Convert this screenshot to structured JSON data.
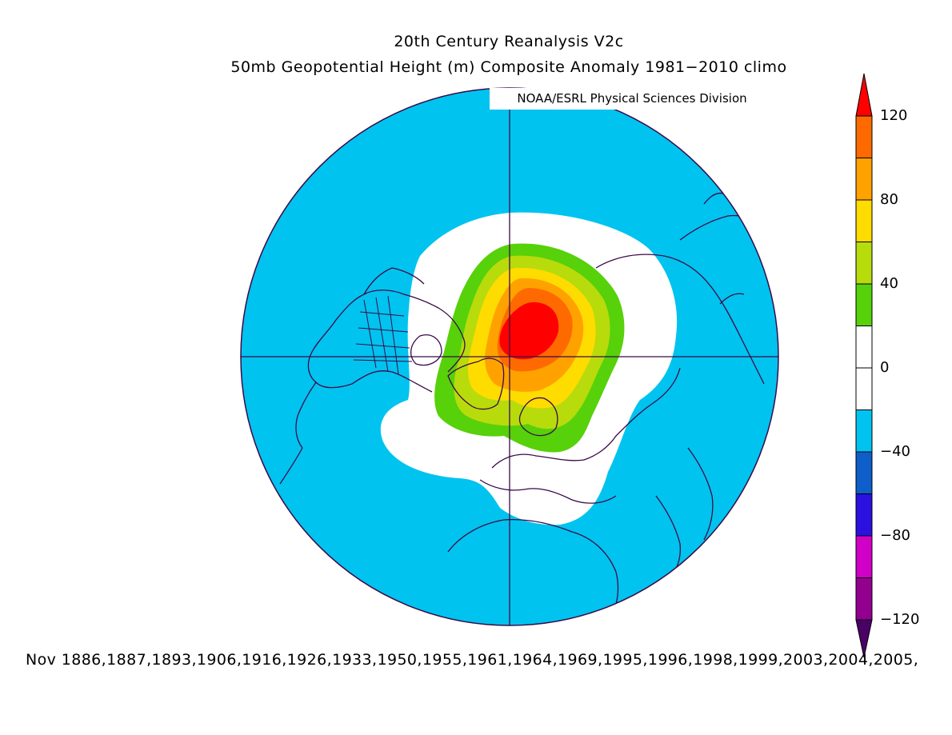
{
  "title_line1": "20th Century Reanalysis V2c",
  "title_line2": "50mb Geopotential Height (m) Composite Anomaly 1981−2010 climo",
  "credit": "NOAA/ESRL Physical Sciences Division",
  "footer": "Nov 1886,1887,1893,1906,1916,1926,1933,1950,1955,1961,1964,1969,1995,1996,1998,1999,2003,2004,2005,",
  "colorbar": {
    "labels": [
      "120",
      "80",
      "40",
      "0",
      "−40",
      "−80",
      "−120"
    ],
    "levels": [
      -120,
      -100,
      -80,
      -60,
      -40,
      -20,
      20,
      40,
      60,
      80,
      100,
      120
    ],
    "colors": [
      "#4b0066",
      "#93008f",
      "#d000c6",
      "#2b10e0",
      "#0f5fca",
      "#00c3ef",
      "#ffffff",
      "#ffffff",
      "#57d10a",
      "#b8db0c",
      "#ffdc00",
      "#ffa200",
      "#ff6a00",
      "#ff0000"
    ]
  },
  "map": {
    "projection": "north polar stereographic",
    "colors": {
      "neg40": "#00c3ef",
      "zero": "#ffffff",
      "pos40": "#57d10a",
      "pos60": "#b8db0c",
      "pos80": "#ffdc00",
      "pos100": "#ffa200",
      "pos120": "#ff6a00",
      "max": "#ff0000",
      "coast": "#3a0a48",
      "grid": "#3a0a48"
    }
  }
}
